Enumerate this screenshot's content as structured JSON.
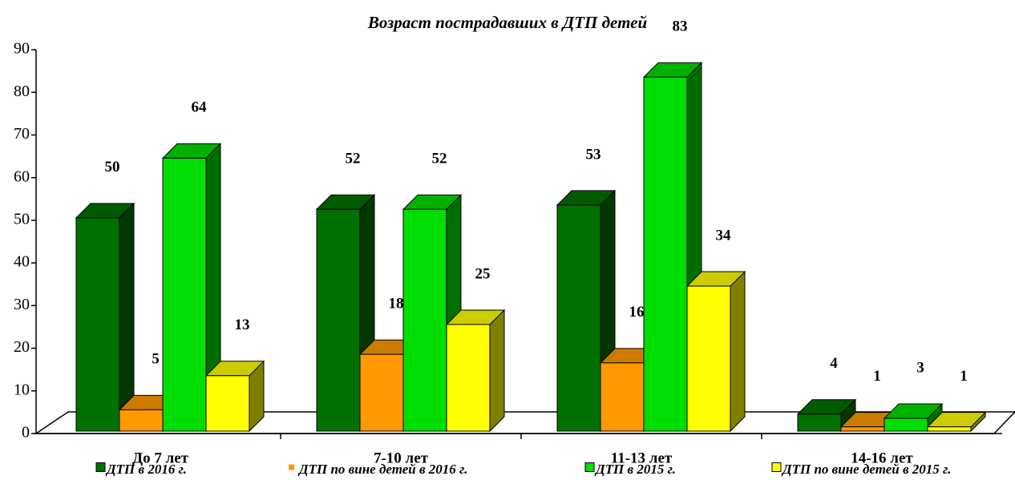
{
  "chart_data": {
    "type": "bar3d",
    "title": "Возраст пострадавших в  ДТП  детей",
    "categories": [
      "До 7 лет",
      "7-10 лет",
      "11-13 лет",
      "14-16 лет"
    ],
    "series": [
      {
        "name": "ДТП в 2016 г.",
        "color": "#007000",
        "values": [
          50,
          52,
          53,
          4
        ]
      },
      {
        "name": "ДТП по вине детей в 2016 г.",
        "color": "#ff9900",
        "values": [
          5,
          18,
          16,
          1
        ]
      },
      {
        "name": "ДТП в 2015 г.",
        "color": "#00dd00",
        "values": [
          64,
          52,
          83,
          3
        ]
      },
      {
        "name": "ДТП по вине детей в 2015 г.",
        "color": "#ffff00",
        "values": [
          13,
          25,
          34,
          1
        ]
      }
    ],
    "ylim": [
      0,
      90
    ],
    "yticks": [
      0,
      10,
      20,
      30,
      40,
      50,
      60,
      70,
      80,
      90
    ]
  }
}
